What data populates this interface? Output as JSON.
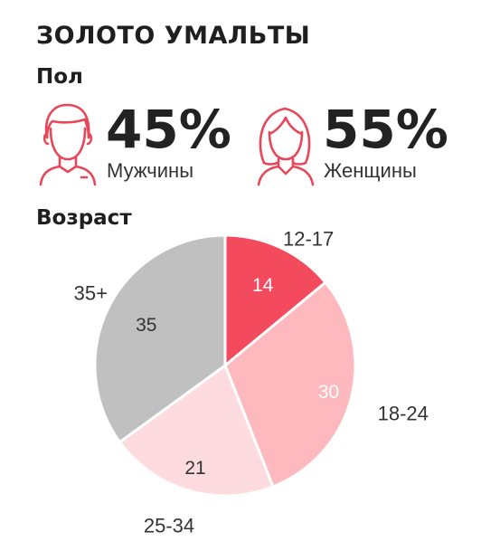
{
  "header": {
    "title": "ЗОЛОТО УМАЛЬТЫ"
  },
  "gender": {
    "section_label": "Пол",
    "male": {
      "percent": "45%",
      "label": "Мужчины",
      "icon": "male-person-icon"
    },
    "female": {
      "percent": "55%",
      "label": "Женщины",
      "icon": "female-person-icon"
    },
    "icon_color": "#e8475a"
  },
  "age": {
    "section_label": "Возраст"
  },
  "chart_data": {
    "type": "pie",
    "title": "",
    "categories": [
      "12-17",
      "18-24",
      "25-34",
      "35+"
    ],
    "values": [
      14,
      30,
      21,
      35
    ],
    "colors": [
      "#f44a5e",
      "#fdb9bd",
      "#fedbde",
      "#c0c0c0"
    ],
    "value_text_colors": [
      "#ffffff",
      "#ffffff",
      "#333333",
      "#333333"
    ],
    "start": "12 o'clock, clockwise"
  }
}
